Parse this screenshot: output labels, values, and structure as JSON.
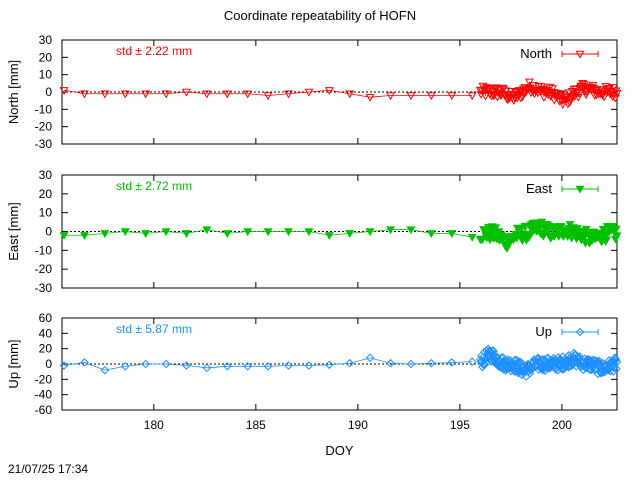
{
  "title": "Coordinate repeatability of HOFN",
  "timestamp": "21/07/25 17:34",
  "chart_data": [
    {
      "type": "scatter",
      "component": "north",
      "ylabel": "North [mm]",
      "legend": "North",
      "legend_position": "top-right",
      "std_label": "std ± 2.22 mm",
      "color": "#ff0000",
      "marker": "triangle-down-open",
      "ylim": [
        -30,
        30
      ],
      "yticks": [
        30,
        20,
        10,
        0,
        -10,
        -20,
        -30
      ],
      "xlim": [
        175.5,
        202.7
      ],
      "sparse": {
        "x": [
          175.6,
          176.6,
          177.6,
          178.6,
          179.6,
          180.6,
          181.6,
          182.6,
          183.6,
          184.6,
          185.6,
          186.6,
          187.6,
          188.6,
          189.6,
          190.6,
          191.6,
          192.6,
          193.6,
          194.6,
          195.6
        ],
        "y": [
          1,
          -1,
          -1,
          -1,
          -1,
          -1,
          0,
          -1,
          -1,
          -1,
          -2,
          -1,
          0,
          1,
          -1,
          -3,
          -2,
          -2,
          -2,
          -2,
          -2
        ]
      },
      "dense": {
        "x_start": 196.0,
        "x_end": 202.7,
        "count": 160,
        "baseline": 0,
        "amplitude": 3.5,
        "features": [
          [
            197.6,
            -3
          ],
          [
            198.5,
            3
          ],
          [
            200.1,
            -5
          ],
          [
            201.2,
            2
          ]
        ]
      }
    },
    {
      "type": "scatter",
      "component": "east",
      "ylabel": "East [mm]",
      "legend": "East",
      "legend_position": "top-right",
      "std_label": "std ± 2.72 mm",
      "color": "#00c000",
      "marker": "triangle-down-filled",
      "ylim": [
        -30,
        30
      ],
      "yticks": [
        30,
        20,
        10,
        0,
        -10,
        -20,
        -30
      ],
      "xlim": [
        175.5,
        202.7
      ],
      "sparse": {
        "x": [
          175.6,
          176.6,
          177.6,
          178.6,
          179.6,
          180.6,
          181.6,
          182.6,
          183.6,
          184.6,
          185.6,
          186.6,
          187.6,
          188.6,
          189.6,
          190.6,
          191.6,
          192.6,
          193.6,
          194.6,
          195.6
        ],
        "y": [
          -2,
          -2,
          -1,
          0,
          -1,
          0,
          -1,
          1,
          -1,
          0,
          0,
          0,
          0,
          -2,
          -1,
          0,
          1,
          1,
          -1,
          -1,
          -3
        ]
      },
      "dense": {
        "x_start": 196.0,
        "x_end": 202.7,
        "count": 170,
        "baseline": -1,
        "amplitude": 4,
        "features": [
          [
            197.3,
            -4
          ],
          [
            198.9,
            3
          ],
          [
            200.2,
            2
          ],
          [
            201.5,
            -3
          ]
        ]
      }
    },
    {
      "type": "scatter",
      "component": "up",
      "ylabel": "Up [mm]",
      "legend": "Up",
      "legend_position": "top-right",
      "std_label": "std ± 5.87 mm",
      "color": "#1e90ff",
      "marker": "diamond-open",
      "ylim": [
        -60,
        60
      ],
      "yticks": [
        60,
        40,
        20,
        0,
        -20,
        -40,
        -60
      ],
      "xlim": [
        175.5,
        202.7
      ],
      "sparse": {
        "x": [
          175.6,
          176.6,
          177.6,
          178.6,
          179.6,
          180.6,
          181.6,
          182.6,
          183.6,
          184.6,
          185.6,
          186.6,
          187.6,
          188.6,
          189.6,
          190.6,
          191.6,
          192.6,
          193.6,
          194.6,
          195.6
        ],
        "y": [
          -2,
          2,
          -8,
          -3,
          0,
          0,
          -2,
          -5,
          -3,
          -3,
          -3,
          -2,
          -2,
          -1,
          1,
          8,
          1,
          0,
          1,
          2,
          3
        ]
      },
      "dense": {
        "x_start": 196.0,
        "x_end": 202.7,
        "count": 260,
        "baseline": 0,
        "amplitude": 9,
        "features": [
          [
            196.5,
            12
          ],
          [
            198.2,
            -8
          ],
          [
            200.5,
            6
          ],
          [
            202.0,
            -6
          ]
        ]
      }
    }
  ],
  "x_axis": {
    "label": "DOY",
    "ticks": [
      180,
      185,
      190,
      195,
      200
    ]
  }
}
